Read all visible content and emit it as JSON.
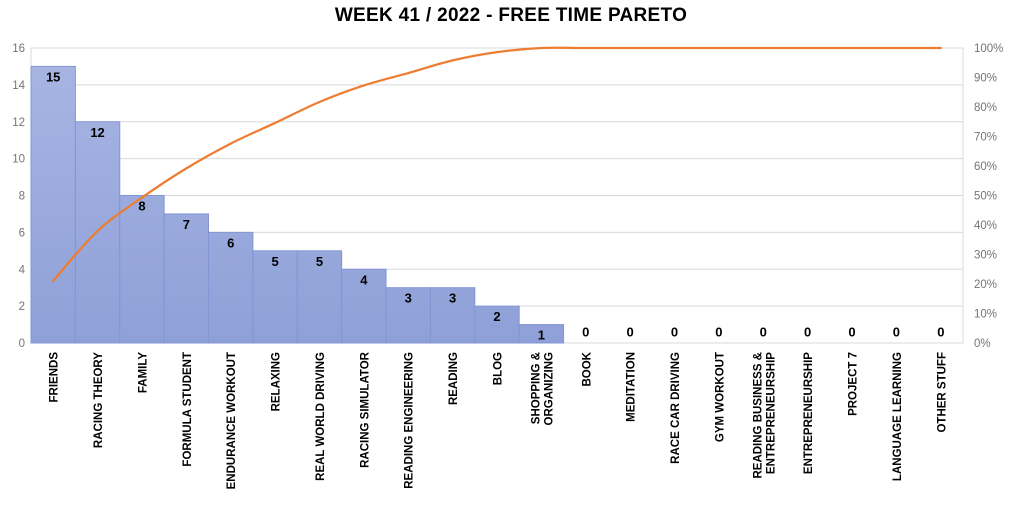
{
  "title": "WEEK 41 / 2022 - FREE TIME PARETO",
  "chart_data": {
    "type": "bar",
    "subtype": "pareto-with-cumulative-line",
    "title": "WEEK 41 / 2022 - FREE TIME PARETO",
    "categories": [
      "FRIENDS",
      "RACING THEORY",
      "FAMILY",
      "FORMULA STUDENT",
      "ENDURANCE WORKOUT",
      "RELAXING",
      "REAL WORLD DRIVING",
      "RACING SIMULATOR",
      "READING ENGINEERING",
      "READING",
      "BLOG",
      "SHOPPING &\nORGANIZING",
      "BOOK",
      "MEDITATION",
      "RACE CAR DRIVING",
      "GYM WORKOUT",
      "READING BUSINESS &\nENTREPRENEURSHIP",
      "ENTREPRENEURSHIP",
      "PROJECT 7",
      "LANGUAGE LEARNING",
      "OTHER STUFF"
    ],
    "series": [
      {
        "name": "bar-values",
        "type": "bar",
        "values": [
          15,
          12,
          8,
          7,
          6,
          5,
          5,
          4,
          3,
          3,
          2,
          1,
          0,
          0,
          0,
          0,
          0,
          0,
          0,
          0,
          0
        ]
      },
      {
        "name": "cumulative-percent",
        "type": "line",
        "values": [
          21.1,
          38.0,
          49.3,
          59.2,
          67.6,
          74.6,
          81.7,
          87.3,
          91.5,
          95.8,
          98.6,
          100,
          100,
          100,
          100,
          100,
          100,
          100,
          100,
          100,
          100
        ]
      }
    ],
    "data_labels": [
      "15",
      "12",
      "8",
      "7",
      "6",
      "5",
      "5",
      "4",
      "3",
      "3",
      "2",
      "1",
      "0",
      "0",
      "0",
      "0",
      "0",
      "0",
      "0",
      "0",
      "0"
    ],
    "left_axis": {
      "min": 0,
      "max": 16,
      "step": 2,
      "ticks": [
        "0",
        "2",
        "4",
        "6",
        "8",
        "10",
        "12",
        "14",
        "16"
      ]
    },
    "right_axis": {
      "min": 0,
      "max": 100,
      "step": 10,
      "ticks": [
        "0%",
        "10%",
        "20%",
        "30%",
        "40%",
        "50%",
        "60%",
        "70%",
        "80%",
        "90%",
        "100%"
      ]
    },
    "grid": "horizontal",
    "legend_position": "none",
    "colors": {
      "bar_fill_top": "#A9B6E3",
      "bar_fill_bottom": "#8EA0D8",
      "bar_border": "#8296D5",
      "line": "#ED7D31",
      "gridline": "#D9D9D9",
      "axis_text": "#757575",
      "data_label": "#000000",
      "category_label": "#000000",
      "title": "#000000"
    }
  }
}
